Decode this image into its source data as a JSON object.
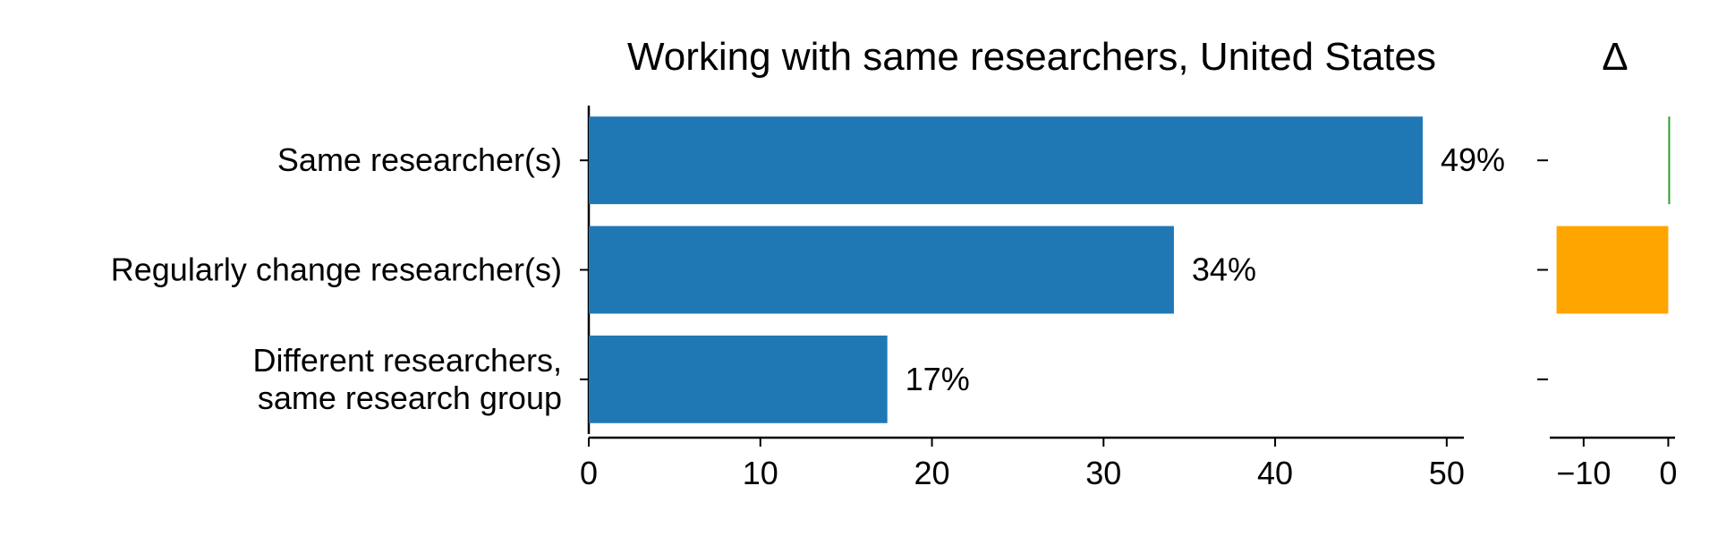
{
  "chart_data": [
    {
      "type": "bar",
      "orientation": "horizontal",
      "title": "Working with same researchers, United States",
      "categories": [
        "Same researcher(s)",
        "Regularly change researcher(s)",
        "Different researchers, same research group"
      ],
      "category_lines": [
        [
          "Same researcher(s)"
        ],
        [
          "Regularly change researcher(s)"
        ],
        [
          "Different researchers,",
          "same research group"
        ]
      ],
      "values": [
        48.6,
        34.1,
        17.4
      ],
      "data_labels": [
        "49%",
        "34%",
        "17%"
      ],
      "xlim": [
        0,
        51
      ],
      "xticks": [
        0,
        10,
        20,
        30,
        40,
        50
      ],
      "xtick_labels": [
        "0",
        "10",
        "20",
        "30",
        "40",
        "50"
      ],
      "xlabel": "",
      "ylabel": "",
      "grid": false,
      "color": "#1f77b4"
    },
    {
      "type": "bar",
      "orientation": "horizontal",
      "title": "Δ",
      "categories": [
        "Same researcher(s)",
        "Regularly change researcher(s)",
        "Different researchers, same research group"
      ],
      "values": [
        0.1,
        -13.2,
        0
      ],
      "xlim": [
        -14,
        0.8
      ],
      "xticks": [
        -10,
        0
      ],
      "xtick_labels": [
        "−10",
        "0"
      ],
      "grid": false,
      "colors": [
        "#2ca02c",
        "#ffa500",
        "#ffa500"
      ]
    }
  ]
}
